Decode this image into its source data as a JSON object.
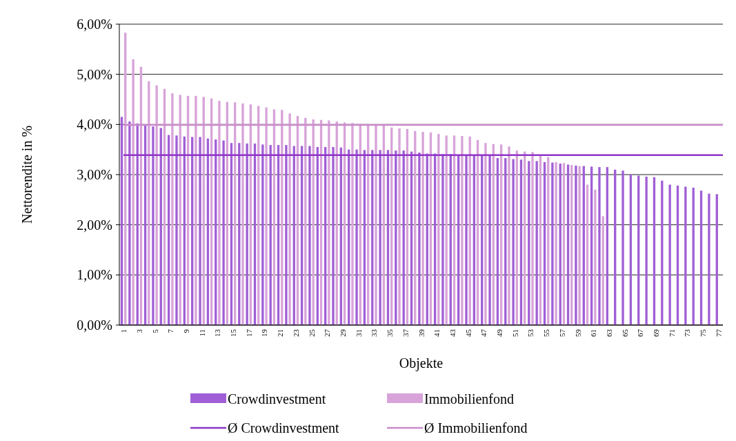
{
  "chart_data": {
    "type": "bar",
    "xlabel": "Objekte",
    "ylabel": "Nettorendite in %",
    "categories": [
      "1",
      null,
      "3",
      null,
      "5",
      null,
      "7",
      null,
      "9",
      null,
      "11",
      null,
      "13",
      null,
      "15",
      null,
      "17",
      null,
      "19",
      null,
      "21",
      null,
      "23",
      null,
      "25",
      null,
      "27",
      null,
      "29",
      null,
      "31",
      null,
      "33",
      null,
      "35",
      null,
      "37",
      null,
      "39",
      null,
      "41",
      null,
      "43",
      null,
      "45",
      null,
      "47",
      null,
      "49",
      null,
      "51",
      null,
      "53",
      null,
      "55",
      null,
      "57",
      null,
      "59",
      null,
      "61",
      null,
      "63",
      null,
      "65",
      null,
      "67",
      null,
      "69",
      null,
      "71",
      null,
      "73",
      null,
      "75",
      null,
      "77"
    ],
    "series": [
      {
        "name": "Crowdinvestment",
        "color": "#a05fd6",
        "values": [
          4.15,
          4.06,
          4.02,
          3.99,
          3.96,
          3.93,
          3.79,
          3.78,
          3.76,
          3.75,
          3.75,
          3.72,
          3.7,
          3.68,
          3.63,
          3.63,
          3.62,
          3.62,
          3.6,
          3.59,
          3.59,
          3.59,
          3.57,
          3.57,
          3.57,
          3.55,
          3.55,
          3.55,
          3.54,
          3.5,
          3.5,
          3.49,
          3.49,
          3.49,
          3.49,
          3.48,
          3.48,
          3.46,
          3.44,
          3.42,
          3.42,
          3.41,
          3.41,
          3.4,
          3.4,
          3.39,
          3.38,
          3.38,
          3.33,
          3.33,
          3.31,
          3.3,
          3.27,
          3.27,
          3.25,
          3.24,
          3.22,
          3.2,
          3.18,
          3.17,
          3.16,
          3.15,
          3.15,
          3.1,
          3.08,
          3.0,
          2.98,
          2.96,
          2.95,
          2.88,
          2.8,
          2.78,
          2.76,
          2.74,
          2.68,
          2.62,
          2.61
        ]
      },
      {
        "name": "Immobilienfond",
        "color": "#d8a3d9",
        "values": [
          5.83,
          5.3,
          5.15,
          4.86,
          4.78,
          4.71,
          4.62,
          4.59,
          4.57,
          4.57,
          4.55,
          4.52,
          4.47,
          4.45,
          4.44,
          4.42,
          4.4,
          4.37,
          4.34,
          4.3,
          4.29,
          4.22,
          4.17,
          4.13,
          4.1,
          4.09,
          4.08,
          4.06,
          4.04,
          4.03,
          4.01,
          4.0,
          3.99,
          3.98,
          3.94,
          3.92,
          3.91,
          3.87,
          3.85,
          3.84,
          3.81,
          3.78,
          3.78,
          3.77,
          3.76,
          3.69,
          3.63,
          3.61,
          3.6,
          3.56,
          3.48,
          3.46,
          3.45,
          3.38,
          3.35,
          3.25,
          3.23,
          3.19,
          3.17,
          2.8,
          2.7,
          2.17,
          null,
          null,
          null,
          null,
          null,
          null,
          null,
          null,
          null,
          null,
          null,
          null,
          null,
          null,
          null
        ]
      }
    ],
    "ref_lines": [
      {
        "axis": "y",
        "value": 3.39,
        "label": "Ø Crowdinvestment",
        "color": "#8e34c8"
      },
      {
        "axis": "y",
        "value": 3.99,
        "label": "Ø Immobilienfond",
        "color": "#c98bcb"
      }
    ],
    "ylim": [
      0,
      6
    ],
    "yticks": [
      {
        "value": 0,
        "label": "0,00%"
      },
      {
        "value": 1,
        "label": "1,00%"
      },
      {
        "value": 2,
        "label": "2,00%"
      },
      {
        "value": 3,
        "label": "3,00%"
      },
      {
        "value": 4,
        "label": "4,00%"
      },
      {
        "value": 5,
        "label": "5,00%"
      },
      {
        "value": 6,
        "label": "6,00%"
      }
    ],
    "grid": "y",
    "legend": "bottom"
  }
}
